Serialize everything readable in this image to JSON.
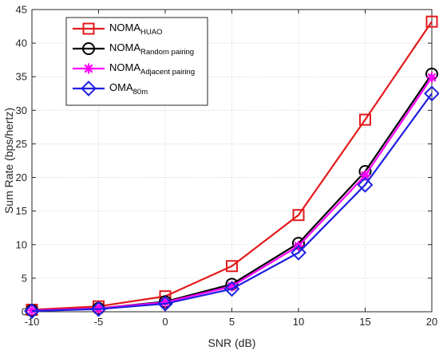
{
  "chart_data": {
    "type": "line",
    "title": "",
    "xlabel": "SNR (dB)",
    "ylabel": "Sum Rate (bps/hertz)",
    "x": [
      -10,
      -5,
      0,
      5,
      10,
      15,
      20
    ],
    "xlim": [
      -10,
      20
    ],
    "ylim": [
      0,
      45
    ],
    "xticks": [
      -10,
      -5,
      0,
      5,
      10,
      15,
      20
    ],
    "yticks": [
      0,
      5,
      10,
      15,
      20,
      25,
      30,
      35,
      40,
      45
    ],
    "grid": true,
    "legend_position": "top-left",
    "series": [
      {
        "name": "NOMA",
        "subscript": "HUAO",
        "color": "#e31a1c",
        "marker": "square",
        "values": [
          0.3,
          0.8,
          2.3,
          6.8,
          14.4,
          28.6,
          43.2
        ]
      },
      {
        "name": "NOMA",
        "subscript": "Random pairing",
        "color": "#000000",
        "marker": "circle",
        "values": [
          0.2,
          0.5,
          1.5,
          4.1,
          10.2,
          20.9,
          35.4
        ]
      },
      {
        "name": "NOMA",
        "subscript": "Adjacent pairing",
        "color": "#ff00ff",
        "marker": "asterisk",
        "values": [
          0.2,
          0.5,
          1.4,
          3.8,
          9.8,
          20.3,
          34.9
        ]
      },
      {
        "name": "OMA",
        "subscript": "80m",
        "color": "#1f1fe0",
        "marker": "diamond",
        "values": [
          0.1,
          0.4,
          1.2,
          3.4,
          8.8,
          18.9,
          32.5
        ]
      }
    ]
  }
}
